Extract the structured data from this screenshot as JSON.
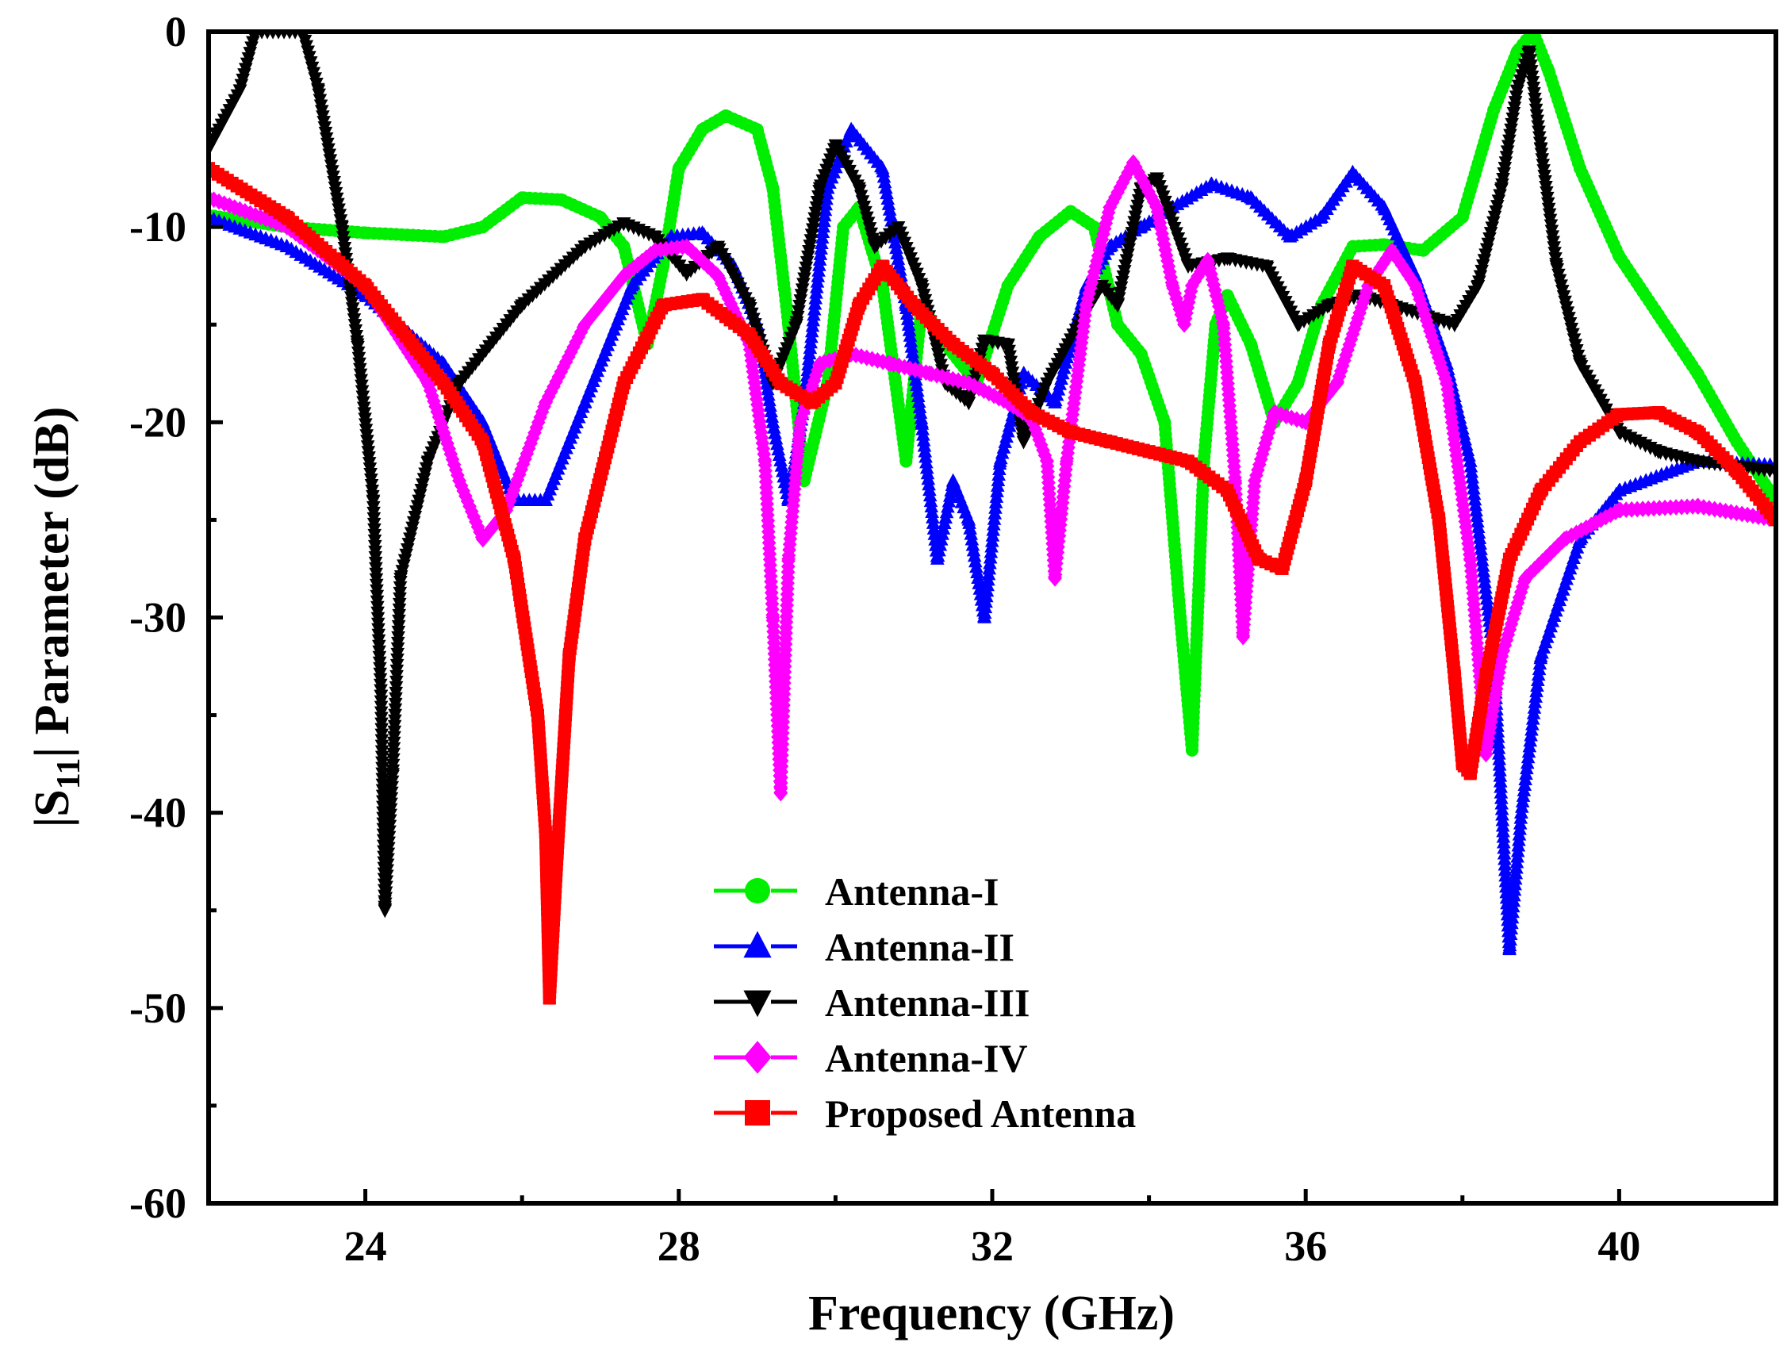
{
  "chart_data": {
    "type": "line",
    "title": "",
    "xlabel": "Frequency (GHz)",
    "ylabel_parts": {
      "prefix": "|S",
      "sub": "11",
      "suffix": "| Parameter (dB)"
    },
    "xlim": [
      22,
      42
    ],
    "ylim": [
      -60,
      0
    ],
    "xticks": [
      24,
      28,
      32,
      36,
      40
    ],
    "yticks": [
      0,
      -10,
      -20,
      -30,
      -40,
      -50,
      -60
    ],
    "grid": false,
    "legend_position": "bottom-center",
    "series": [
      {
        "name": "Antenna-I",
        "color": "#00ee00",
        "marker": "circle",
        "points": [
          [
            22,
            -9.4
          ],
          [
            23,
            -10
          ],
          [
            24,
            -10.3
          ],
          [
            25,
            -10.5
          ],
          [
            25.5,
            -10
          ],
          [
            26,
            -8.5
          ],
          [
            26.5,
            -8.6
          ],
          [
            27,
            -9.5
          ],
          [
            27.3,
            -11
          ],
          [
            27.6,
            -16
          ],
          [
            27.8,
            -12
          ],
          [
            28,
            -7
          ],
          [
            28.3,
            -5
          ],
          [
            28.6,
            -4.3
          ],
          [
            29,
            -5
          ],
          [
            29.2,
            -8
          ],
          [
            29.4,
            -15
          ],
          [
            29.6,
            -23
          ],
          [
            29.9,
            -18
          ],
          [
            30.1,
            -10
          ],
          [
            30.3,
            -9
          ],
          [
            30.6,
            -13
          ],
          [
            30.9,
            -22
          ],
          [
            31.1,
            -14
          ],
          [
            31.4,
            -16
          ],
          [
            31.8,
            -18
          ],
          [
            32.2,
            -13
          ],
          [
            32.6,
            -10.5
          ],
          [
            33,
            -9.2
          ],
          [
            33.3,
            -10
          ],
          [
            33.6,
            -15
          ],
          [
            33.9,
            -16.5
          ],
          [
            34.2,
            -20
          ],
          [
            34.4,
            -30
          ],
          [
            34.55,
            -36.8
          ],
          [
            34.7,
            -22
          ],
          [
            34.85,
            -15
          ],
          [
            35,
            -13.5
          ],
          [
            35.3,
            -16
          ],
          [
            35.6,
            -20
          ],
          [
            35.9,
            -18
          ],
          [
            36.2,
            -14
          ],
          [
            36.6,
            -11
          ],
          [
            37,
            -10.9
          ],
          [
            37.5,
            -11.2
          ],
          [
            38,
            -9.5
          ],
          [
            38.4,
            -4
          ],
          [
            38.7,
            -1
          ],
          [
            38.9,
            0
          ],
          [
            39.1,
            -2
          ],
          [
            39.5,
            -7
          ],
          [
            40,
            -11.5
          ],
          [
            40.5,
            -14.5
          ],
          [
            41,
            -17.5
          ],
          [
            41.5,
            -21
          ],
          [
            42,
            -24
          ]
        ]
      },
      {
        "name": "Antenna-II",
        "color": "#0000ff",
        "marker": "triangle-up",
        "points": [
          [
            22,
            -9.5
          ],
          [
            23,
            -11
          ],
          [
            24,
            -13.5
          ],
          [
            25,
            -17
          ],
          [
            25.5,
            -20
          ],
          [
            25.9,
            -24
          ],
          [
            26.3,
            -24
          ],
          [
            26.8,
            -19
          ],
          [
            27.4,
            -13
          ],
          [
            27.9,
            -10.5
          ],
          [
            28.3,
            -10.3
          ],
          [
            28.7,
            -12
          ],
          [
            29,
            -15
          ],
          [
            29.2,
            -20
          ],
          [
            29.4,
            -24
          ],
          [
            29.6,
            -19
          ],
          [
            29.9,
            -8
          ],
          [
            30.2,
            -5
          ],
          [
            30.6,
            -7
          ],
          [
            30.9,
            -14
          ],
          [
            31.1,
            -20
          ],
          [
            31.3,
            -27
          ],
          [
            31.5,
            -23
          ],
          [
            31.7,
            -25
          ],
          [
            31.9,
            -30
          ],
          [
            32.1,
            -22
          ],
          [
            32.4,
            -17.5
          ],
          [
            32.8,
            -19
          ],
          [
            33.2,
            -13
          ],
          [
            33.5,
            -11
          ],
          [
            33.9,
            -10
          ],
          [
            34.3,
            -9
          ],
          [
            34.8,
            -7.8
          ],
          [
            35.3,
            -8.5
          ],
          [
            35.8,
            -10.5
          ],
          [
            36.2,
            -9.5
          ],
          [
            36.6,
            -7.2
          ],
          [
            37,
            -9
          ],
          [
            37.4,
            -12.5
          ],
          [
            37.8,
            -17
          ],
          [
            38.1,
            -22
          ],
          [
            38.4,
            -32
          ],
          [
            38.6,
            -47
          ],
          [
            38.75,
            -40
          ],
          [
            39,
            -32
          ],
          [
            39.5,
            -26
          ],
          [
            40,
            -23.5
          ],
          [
            41,
            -22
          ],
          [
            42,
            -22.2
          ]
        ]
      },
      {
        "name": "Antenna-III",
        "color": "#000000",
        "marker": "triangle-down",
        "points": [
          [
            22,
            -6
          ],
          [
            22.4,
            -3
          ],
          [
            22.6,
            0
          ],
          [
            23.2,
            0
          ],
          [
            23.4,
            -3
          ],
          [
            23.7,
            -10
          ],
          [
            23.9,
            -16
          ],
          [
            24.1,
            -24
          ],
          [
            24.2,
            -34
          ],
          [
            24.25,
            -45
          ],
          [
            24.35,
            -38
          ],
          [
            24.45,
            -28
          ],
          [
            24.8,
            -22
          ],
          [
            25.2,
            -18
          ],
          [
            26,
            -14
          ],
          [
            26.8,
            -11
          ],
          [
            27.3,
            -9.8
          ],
          [
            27.7,
            -10.5
          ],
          [
            28.1,
            -12.4
          ],
          [
            28.5,
            -11
          ],
          [
            28.9,
            -14
          ],
          [
            29.2,
            -18
          ],
          [
            29.5,
            -15
          ],
          [
            29.8,
            -8
          ],
          [
            30,
            -5.8
          ],
          [
            30.3,
            -8
          ],
          [
            30.5,
            -11
          ],
          [
            30.8,
            -10
          ],
          [
            31.1,
            -13
          ],
          [
            31.4,
            -18
          ],
          [
            31.7,
            -19
          ],
          [
            31.9,
            -15.8
          ],
          [
            32.2,
            -16
          ],
          [
            32.4,
            -21
          ],
          [
            32.7,
            -18
          ],
          [
            33.1,
            -15
          ],
          [
            33.4,
            -13
          ],
          [
            33.6,
            -14
          ],
          [
            33.9,
            -8
          ],
          [
            34.1,
            -7.5
          ],
          [
            34.5,
            -12
          ],
          [
            35,
            -11.6
          ],
          [
            35.5,
            -12
          ],
          [
            35.9,
            -15
          ],
          [
            36.3,
            -14
          ],
          [
            36.7,
            -13.5
          ],
          [
            37.1,
            -14
          ],
          [
            37.5,
            -14.5
          ],
          [
            37.9,
            -15
          ],
          [
            38.2,
            -13
          ],
          [
            38.5,
            -8
          ],
          [
            38.7,
            -3
          ],
          [
            38.85,
            -1
          ],
          [
            39,
            -6
          ],
          [
            39.2,
            -12
          ],
          [
            39.5,
            -17
          ],
          [
            40,
            -20.5
          ],
          [
            40.5,
            -21.5
          ],
          [
            41,
            -22
          ],
          [
            42,
            -22.5
          ]
        ]
      },
      {
        "name": "Antenna-IV",
        "color": "#ff00ff",
        "marker": "diamond",
        "points": [
          [
            22,
            -8.5
          ],
          [
            23,
            -10
          ],
          [
            24,
            -13
          ],
          [
            24.8,
            -18
          ],
          [
            25.2,
            -23
          ],
          [
            25.5,
            -26
          ],
          [
            25.8,
            -24.5
          ],
          [
            26.3,
            -19
          ],
          [
            26.8,
            -15
          ],
          [
            27.3,
            -12.5
          ],
          [
            27.7,
            -11.2
          ],
          [
            28.1,
            -11
          ],
          [
            28.5,
            -12.5
          ],
          [
            28.9,
            -16
          ],
          [
            29.1,
            -22
          ],
          [
            29.2,
            -30
          ],
          [
            29.3,
            -39
          ],
          [
            29.4,
            -27
          ],
          [
            29.55,
            -20
          ],
          [
            29.8,
            -17
          ],
          [
            30.2,
            -16.5
          ],
          [
            30.7,
            -17
          ],
          [
            31.2,
            -17.5
          ],
          [
            31.7,
            -18
          ],
          [
            32.2,
            -19
          ],
          [
            32.5,
            -19.8
          ],
          [
            32.7,
            -22
          ],
          [
            32.8,
            -28
          ],
          [
            32.95,
            -22
          ],
          [
            33.2,
            -14
          ],
          [
            33.5,
            -9
          ],
          [
            33.8,
            -6.7
          ],
          [
            34.1,
            -9
          ],
          [
            34.3,
            -13
          ],
          [
            34.45,
            -15
          ],
          [
            34.55,
            -13
          ],
          [
            34.75,
            -11.7
          ],
          [
            34.95,
            -15
          ],
          [
            35.1,
            -23
          ],
          [
            35.2,
            -31
          ],
          [
            35.35,
            -23
          ],
          [
            35.6,
            -19.5
          ],
          [
            36,
            -20
          ],
          [
            36.4,
            -18
          ],
          [
            36.8,
            -13
          ],
          [
            37.1,
            -11.2
          ],
          [
            37.4,
            -13
          ],
          [
            37.8,
            -18
          ],
          [
            38.1,
            -27
          ],
          [
            38.3,
            -37
          ],
          [
            38.5,
            -32
          ],
          [
            38.8,
            -28
          ],
          [
            39.3,
            -26
          ],
          [
            40,
            -24.5
          ],
          [
            41,
            -24.3
          ],
          [
            42,
            -25
          ]
        ]
      },
      {
        "name": "Proposed Antenna",
        "color": "#ff0000",
        "marker": "square",
        "points": [
          [
            22,
            -7
          ],
          [
            23,
            -9.5
          ],
          [
            24,
            -13
          ],
          [
            25,
            -18
          ],
          [
            25.5,
            -21
          ],
          [
            25.9,
            -27
          ],
          [
            26.2,
            -35
          ],
          [
            26.3,
            -41
          ],
          [
            26.35,
            -49.5
          ],
          [
            26.45,
            -42
          ],
          [
            26.6,
            -32
          ],
          [
            26.8,
            -26
          ],
          [
            27.3,
            -18
          ],
          [
            27.8,
            -14
          ],
          [
            28.3,
            -13.7
          ],
          [
            28.9,
            -15.5
          ],
          [
            29.3,
            -18
          ],
          [
            29.7,
            -19
          ],
          [
            30,
            -18
          ],
          [
            30.3,
            -14
          ],
          [
            30.6,
            -12
          ],
          [
            31,
            -14
          ],
          [
            31.5,
            -16
          ],
          [
            32,
            -17.5
          ],
          [
            32.5,
            -19.5
          ],
          [
            33,
            -20.5
          ],
          [
            33.5,
            -21
          ],
          [
            34,
            -21.5
          ],
          [
            34.5,
            -22
          ],
          [
            35,
            -23.5
          ],
          [
            35.4,
            -27
          ],
          [
            35.7,
            -27.5
          ],
          [
            36,
            -23
          ],
          [
            36.3,
            -16
          ],
          [
            36.6,
            -12
          ],
          [
            37,
            -13
          ],
          [
            37.4,
            -18
          ],
          [
            37.7,
            -25
          ],
          [
            37.9,
            -33
          ],
          [
            38,
            -37.5
          ],
          [
            38.1,
            -38
          ],
          [
            38.3,
            -33
          ],
          [
            38.6,
            -27
          ],
          [
            39,
            -23.5
          ],
          [
            39.5,
            -21
          ],
          [
            40,
            -19.6
          ],
          [
            40.5,
            -19.5
          ],
          [
            41,
            -20.5
          ],
          [
            41.5,
            -22.5
          ],
          [
            42,
            -25
          ]
        ]
      }
    ]
  }
}
